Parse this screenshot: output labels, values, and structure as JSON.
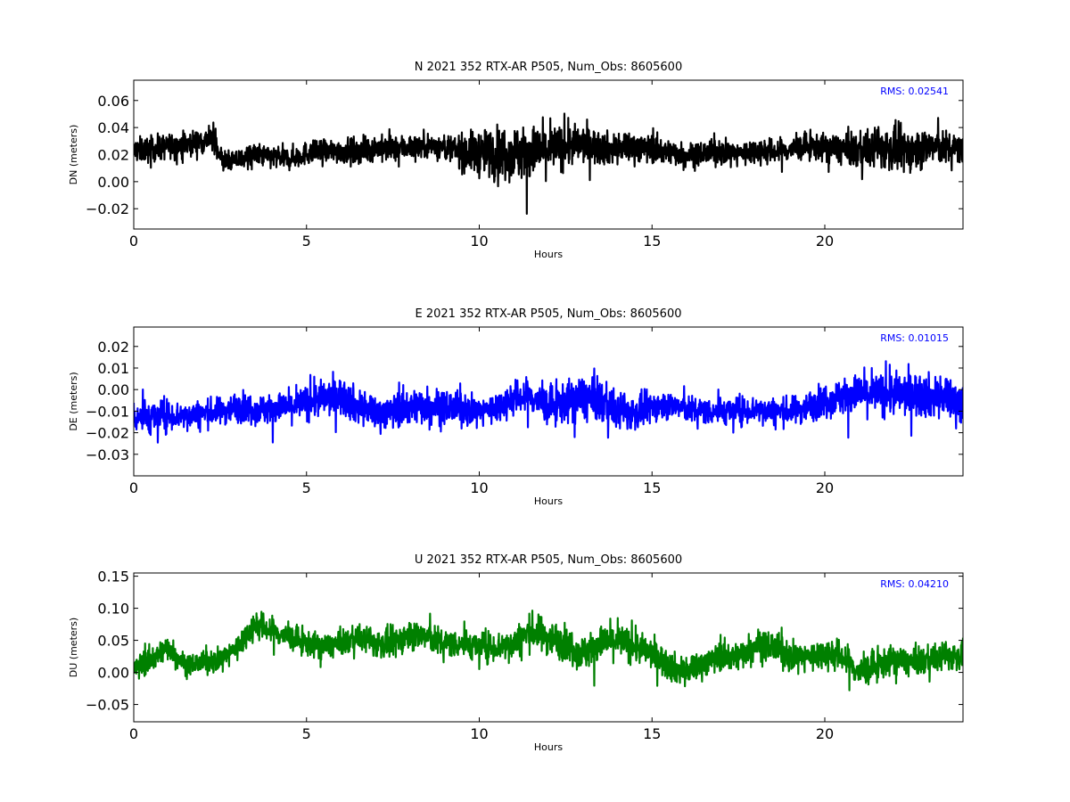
{
  "chart_data": [
    {
      "type": "line",
      "title": "N 2021 352 RTX-AR  P505, Num_Obs: 8605600",
      "xlabel": "Hours",
      "ylabel": "DN (meters)",
      "xlim": [
        0,
        24
      ],
      "ylim": [
        -0.035,
        0.075
      ],
      "xticks": [
        0,
        5,
        10,
        15,
        20
      ],
      "yticks": [
        -0.02,
        0.0,
        0.02,
        0.04,
        0.06
      ],
      "ytick_labels": [
        "−0.02",
        "0.00",
        "0.02",
        "0.04",
        "0.06"
      ],
      "color": "#000000",
      "annotation": "RMS:  0.02541",
      "annotation_color": "#0000ff",
      "series": [
        {
          "x": [
            0,
            0.5,
            1,
            1.5,
            2,
            2.3,
            2.6,
            3,
            3.5,
            4,
            4.5,
            5,
            5.5,
            6,
            6.5,
            7,
            7.5,
            8,
            8.5,
            9,
            9.5,
            10,
            10.5,
            11,
            11.5,
            12,
            12.5,
            13,
            13.5,
            14,
            14.5,
            15,
            15.5,
            16,
            16.5,
            17,
            17.5,
            18,
            18.5,
            19,
            19.5,
            20,
            20.5,
            21,
            21.5,
            22,
            22.5,
            23,
            23.5,
            24
          ],
          "y": [
            0.023,
            0.024,
            0.026,
            0.028,
            0.03,
            0.032,
            0.014,
            0.016,
            0.02,
            0.018,
            0.017,
            0.021,
            0.022,
            0.023,
            0.022,
            0.025,
            0.024,
            0.026,
            0.027,
            0.025,
            0.022,
            0.021,
            0.022,
            0.022,
            0.021,
            0.024,
            0.026,
            0.028,
            0.025,
            0.024,
            0.026,
            0.024,
            0.022,
            0.02,
            0.021,
            0.022,
            0.021,
            0.023,
            0.022,
            0.024,
            0.026,
            0.025,
            0.024,
            0.023,
            0.025,
            0.024,
            0.023,
            0.026,
            0.025,
            0.024
          ],
          "spread": [
            0.012,
            0.012,
            0.012,
            0.012,
            0.012,
            0.012,
            0.009,
            0.01,
            0.011,
            0.011,
            0.011,
            0.011,
            0.011,
            0.012,
            0.012,
            0.012,
            0.012,
            0.012,
            0.012,
            0.012,
            0.017,
            0.022,
            0.024,
            0.026,
            0.026,
            0.023,
            0.02,
            0.018,
            0.016,
            0.015,
            0.015,
            0.013,
            0.012,
            0.011,
            0.011,
            0.011,
            0.011,
            0.012,
            0.012,
            0.012,
            0.012,
            0.013,
            0.015,
            0.017,
            0.019,
            0.021,
            0.02,
            0.018,
            0.016,
            0.014
          ]
        }
      ]
    },
    {
      "type": "line",
      "title": "E 2021 352 RTX-AR  P505, Num_Obs: 8605600",
      "xlabel": "Hours",
      "ylabel": "DE (meters)",
      "xlim": [
        0,
        24
      ],
      "ylim": [
        -0.04,
        0.029
      ],
      "xticks": [
        0,
        5,
        10,
        15,
        20
      ],
      "yticks": [
        -0.03,
        -0.02,
        -0.01,
        0.0,
        0.01,
        0.02
      ],
      "ytick_labels": [
        "−0.03",
        "−0.02",
        "−0.01",
        "0.00",
        "0.01",
        "0.02"
      ],
      "color": "#0000ff",
      "annotation": "RMS:  0.01015",
      "annotation_color": "#0000ff",
      "series": [
        {
          "x": [
            0,
            0.5,
            1,
            1.5,
            2,
            2.5,
            3,
            3.5,
            4,
            4.5,
            5,
            5.5,
            6,
            6.5,
            7,
            7.5,
            8,
            8.5,
            9,
            9.5,
            10,
            10.5,
            11,
            11.5,
            12,
            12.5,
            13,
            13.5,
            14,
            14.5,
            15,
            15.5,
            16,
            16.5,
            17,
            17.5,
            18,
            18.5,
            19,
            19.5,
            20,
            20.5,
            21,
            21.5,
            22,
            22.5,
            23,
            23.5,
            24
          ],
          "y": [
            -0.012,
            -0.013,
            -0.012,
            -0.012,
            -0.011,
            -0.01,
            -0.008,
            -0.009,
            -0.009,
            -0.008,
            -0.006,
            -0.004,
            -0.003,
            -0.008,
            -0.011,
            -0.01,
            -0.008,
            -0.007,
            -0.008,
            -0.009,
            -0.01,
            -0.008,
            -0.004,
            -0.003,
            -0.008,
            -0.006,
            -0.004,
            -0.005,
            -0.01,
            -0.011,
            -0.008,
            -0.007,
            -0.009,
            -0.01,
            -0.01,
            -0.01,
            -0.009,
            -0.01,
            -0.01,
            -0.008,
            -0.005,
            -0.003,
            -0.002,
            -0.002,
            -0.002,
            -0.002,
            -0.003,
            -0.004,
            -0.006
          ],
          "spread": [
            0.01,
            0.01,
            0.009,
            0.008,
            0.008,
            0.008,
            0.009,
            0.009,
            0.009,
            0.009,
            0.01,
            0.011,
            0.011,
            0.011,
            0.01,
            0.01,
            0.011,
            0.011,
            0.01,
            0.009,
            0.008,
            0.009,
            0.01,
            0.011,
            0.011,
            0.012,
            0.014,
            0.013,
            0.011,
            0.01,
            0.009,
            0.008,
            0.008,
            0.008,
            0.008,
            0.008,
            0.008,
            0.008,
            0.008,
            0.009,
            0.01,
            0.011,
            0.012,
            0.012,
            0.013,
            0.013,
            0.013,
            0.013,
            0.013
          ]
        }
      ]
    },
    {
      "type": "line",
      "title": "U 2021 352 RTX-AR  P505, Num_Obs: 8605600",
      "xlabel": "Hours",
      "ylabel": "DU (meters)",
      "xlim": [
        0,
        24
      ],
      "ylim": [
        -0.077,
        0.155
      ],
      "xticks": [
        0,
        5,
        10,
        15,
        20
      ],
      "yticks": [
        -0.05,
        0.0,
        0.05,
        0.1,
        0.15
      ],
      "ytick_labels": [
        "−0.05",
        "0.00",
        "0.05",
        "0.10",
        "0.15"
      ],
      "color": "#008000",
      "annotation": "RMS:  0.04210",
      "annotation_color": "#0000ff",
      "series": [
        {
          "x": [
            0,
            0.5,
            1,
            1.5,
            2,
            2.5,
            3,
            3.5,
            4,
            4.5,
            5,
            5.5,
            6,
            6.5,
            7,
            7.5,
            8,
            8.5,
            9,
            9.5,
            10,
            10.5,
            11,
            11.5,
            12,
            12.5,
            13,
            13.5,
            14,
            14.5,
            15,
            15.5,
            16,
            16.5,
            17,
            17.5,
            18,
            18.5,
            19,
            19.5,
            20,
            20.5,
            21,
            21.5,
            22,
            22.5,
            23,
            23.5,
            24
          ],
          "y": [
            0.005,
            0.02,
            0.04,
            0.012,
            0.015,
            0.02,
            0.04,
            0.075,
            0.065,
            0.055,
            0.045,
            0.04,
            0.045,
            0.055,
            0.045,
            0.045,
            0.06,
            0.055,
            0.045,
            0.045,
            0.04,
            0.04,
            0.045,
            0.065,
            0.055,
            0.045,
            0.03,
            0.045,
            0.05,
            0.04,
            0.03,
            0.01,
            0.0,
            0.015,
            0.025,
            0.025,
            0.045,
            0.04,
            0.025,
            0.025,
            0.03,
            0.025,
            0.0,
            0.01,
            0.02,
            0.015,
            0.02,
            0.025,
            0.025
          ],
          "spread": [
            0.025,
            0.025,
            0.025,
            0.02,
            0.02,
            0.022,
            0.025,
            0.028,
            0.028,
            0.025,
            0.025,
            0.025,
            0.025,
            0.025,
            0.028,
            0.03,
            0.03,
            0.03,
            0.028,
            0.028,
            0.028,
            0.03,
            0.032,
            0.035,
            0.035,
            0.035,
            0.035,
            0.035,
            0.035,
            0.032,
            0.03,
            0.03,
            0.03,
            0.028,
            0.028,
            0.03,
            0.03,
            0.03,
            0.028,
            0.028,
            0.03,
            0.032,
            0.032,
            0.03,
            0.028,
            0.028,
            0.028,
            0.028,
            0.028
          ]
        }
      ]
    }
  ]
}
